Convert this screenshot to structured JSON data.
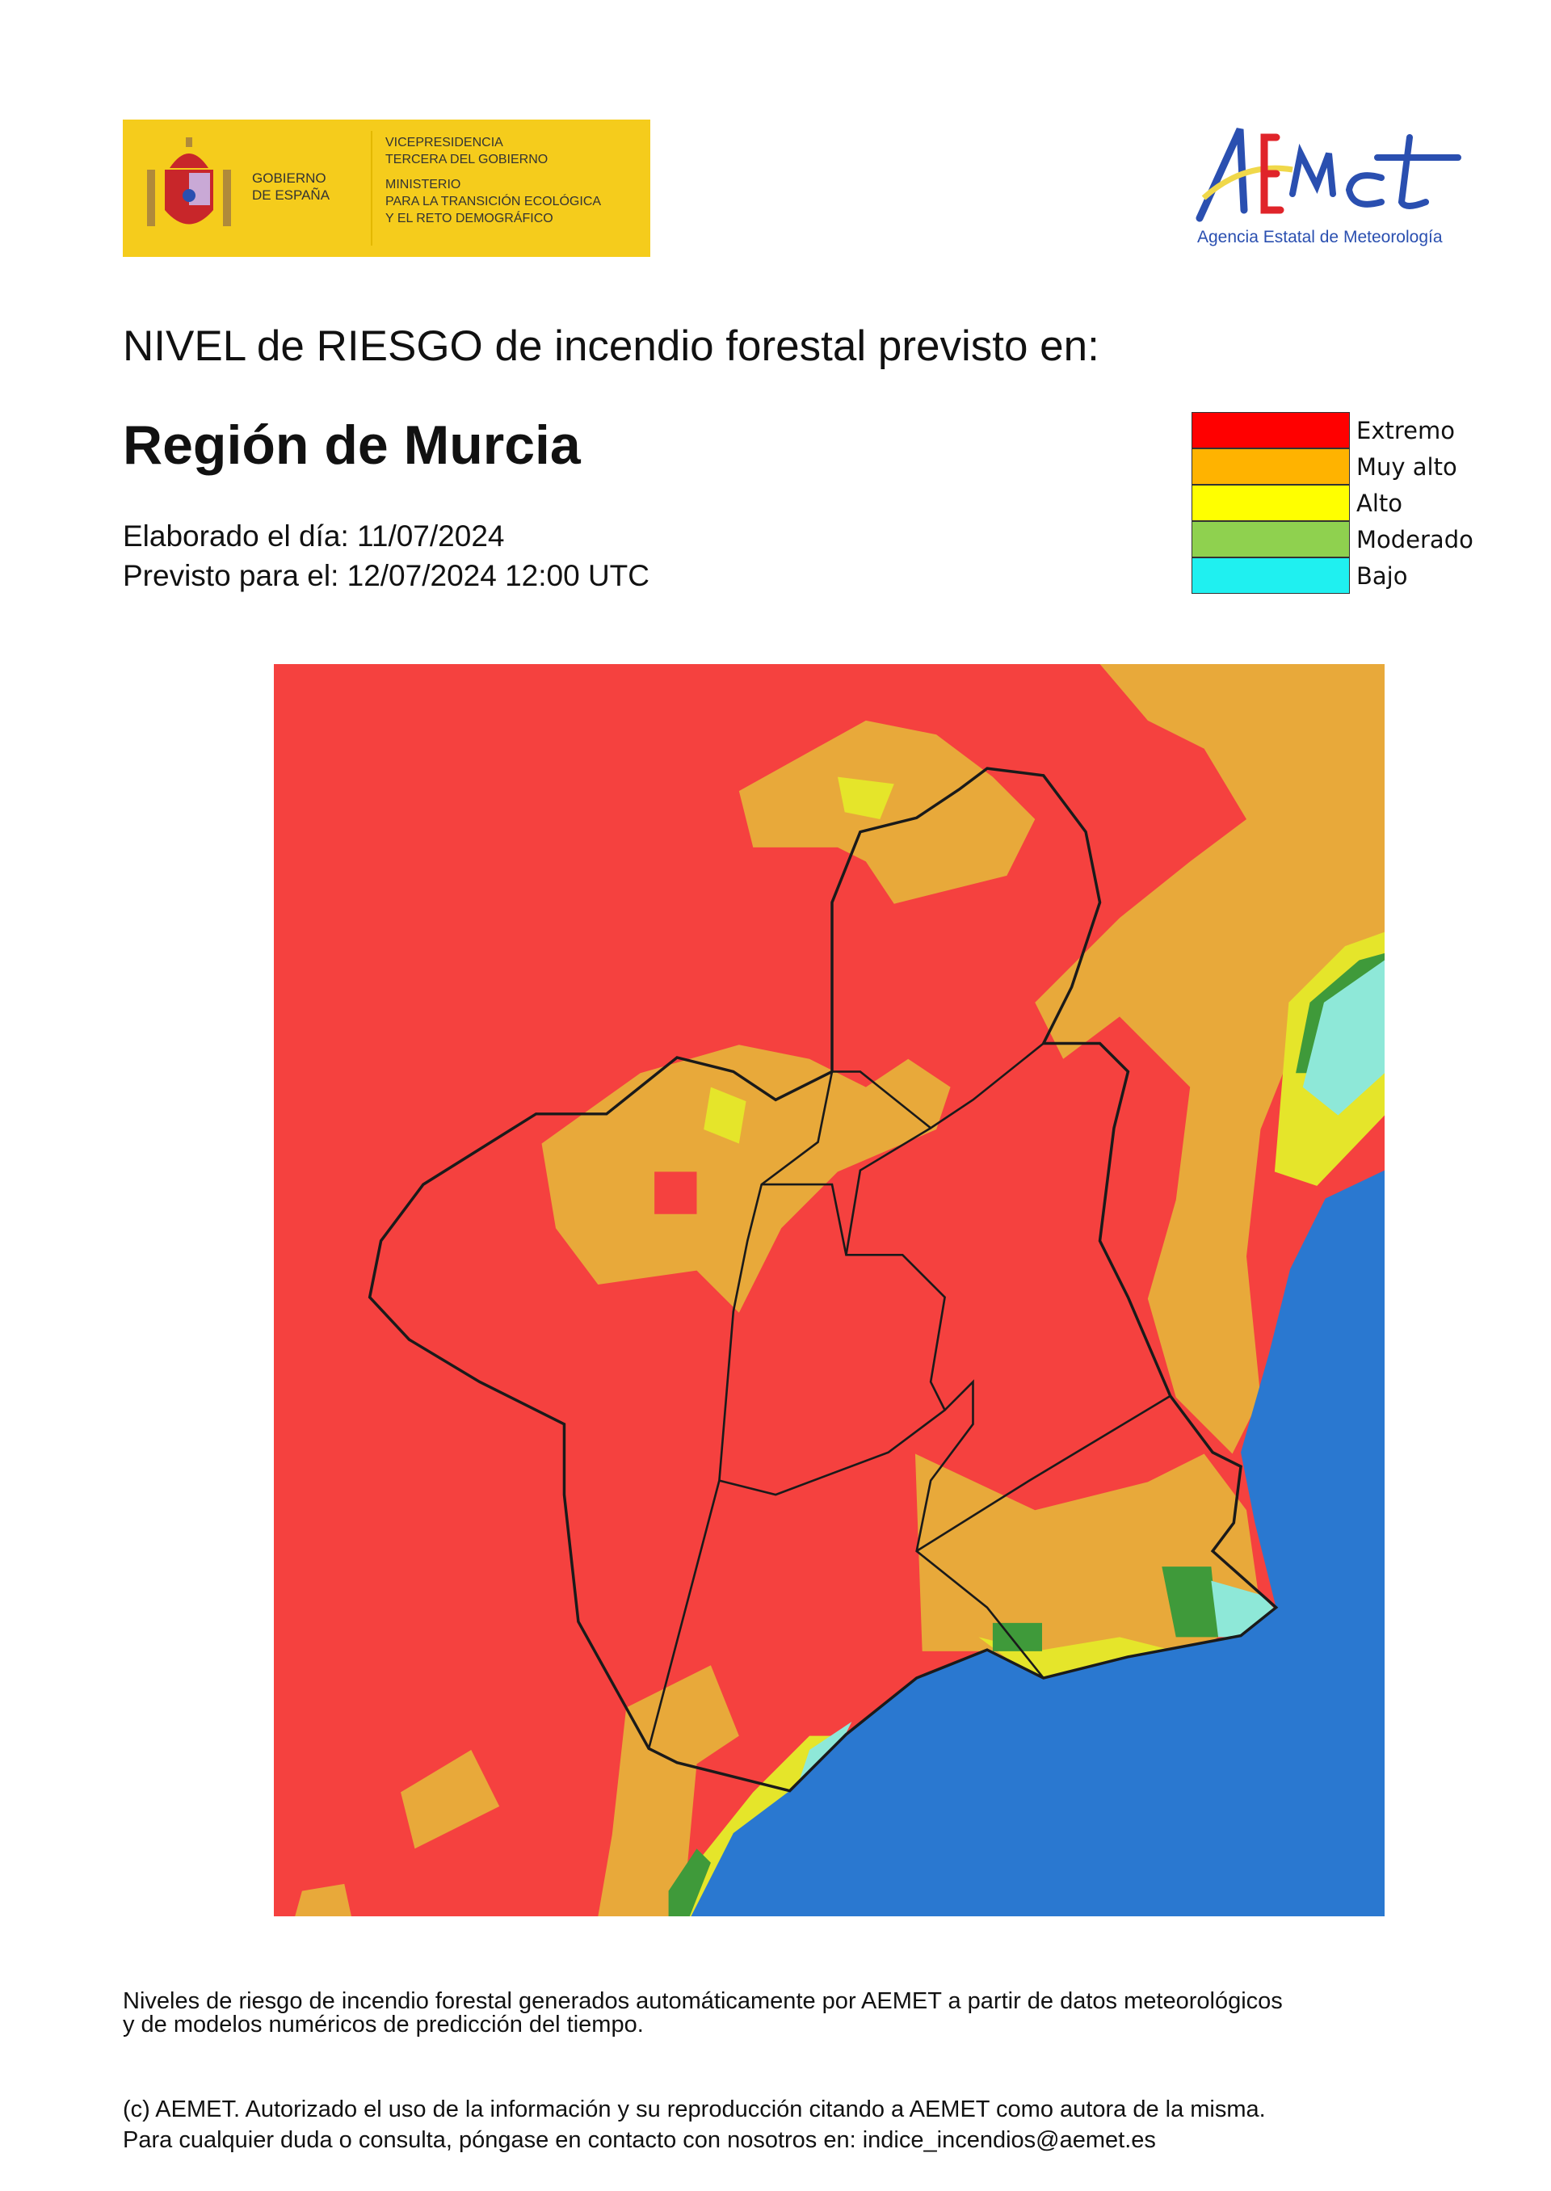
{
  "header": {
    "gov_logo": {
      "line1": "GOBIERNO",
      "line2": "DE ESPAÑA",
      "ministry_lines": [
        "VICEPRESIDENCIA",
        "TERCERA DEL GOBIERNO",
        "MINISTERIO",
        "PARA LA TRANSICIÓN ECOLÓGICA",
        "Y EL RETO DEMOGRÁFICO"
      ]
    },
    "aemet_logo": {
      "wordmark": "AEMet",
      "subtitle": "Agencia Estatal de Meteorología"
    }
  },
  "title": "NIVEL de RIESGO de incendio forestal previsto en:",
  "region": "Región de Murcia",
  "elaborado": "Elaborado el día: 11/07/2024",
  "previsto": "Previsto para el: 12/07/2024 12:00 UTC",
  "legend": [
    {
      "label": "Extremo",
      "color": "#ff0000"
    },
    {
      "label": "Muy alto",
      "color": "#ffb300"
    },
    {
      "label": "Alto",
      "color": "#ffff00"
    },
    {
      "label": "Moderado",
      "color": "#8fd14f"
    },
    {
      "label": "Bajo",
      "color": "#1ff0f0"
    }
  ],
  "map_colors": {
    "extremo": "#f5413f",
    "muy_alto": "#e8a93a",
    "alto": "#e5e52a",
    "moderado": "#3f9a3a",
    "bajo": "#8ee8d8",
    "sea": "#2a78d0",
    "border": "#1a1a1a"
  },
  "footer": {
    "note_line1": "Niveles de riesgo de incendio forestal generados automáticamente por AEMET a partir de datos meteorológicos",
    "note_line2": "y de modelos numéricos de predicción del tiempo.",
    "copyright_line1": "(c) AEMET. Autorizado el uso de la información y su reproducción citando a AEMET como autora de la misma.",
    "copyright_line2": "Para cualquier duda o consulta, póngase en contacto con nosotros en: indice_incendios@aemet.es"
  }
}
